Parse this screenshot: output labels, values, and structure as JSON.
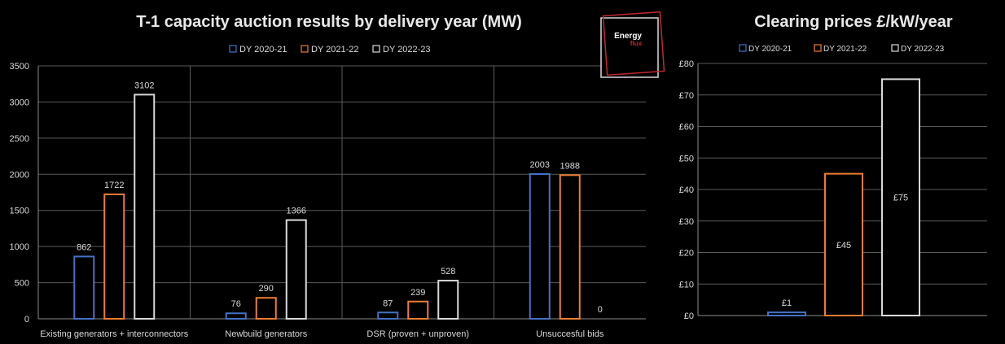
{
  "chart_data": [
    {
      "type": "bar",
      "title": "T-1 capacity auction results by delivery year (MW)",
      "xlabel": "",
      "ylabel": "",
      "ylim": [
        0,
        3500
      ],
      "yticks": [
        0,
        500,
        1000,
        1500,
        2000,
        2500,
        3000,
        3500
      ],
      "ytick_labels": [
        "0",
        "500",
        "1000",
        "1500",
        "2000",
        "2500",
        "3000",
        "3500"
      ],
      "grid": true,
      "legend": "top-center",
      "categories": [
        "Existing generators + interconnectors",
        "Newbuild generators",
        "DSR (proven + unproven)",
        "Unsuccesful bids"
      ],
      "series": [
        {
          "name": "DY 2020-21",
          "color": "#4472c4",
          "values": [
            862,
            76,
            87,
            2003
          ],
          "labels": [
            "862",
            "76",
            "87",
            "2003"
          ]
        },
        {
          "name": "DY 2021-22",
          "color": "#ed7d31",
          "values": [
            1722,
            290,
            239,
            1988
          ],
          "labels": [
            "1722",
            "290",
            "239",
            "1988"
          ]
        },
        {
          "name": "DY 2022-23",
          "color": "#d9d9d9",
          "values": [
            3102,
            1366,
            528,
            0
          ],
          "labels": [
            "3102",
            "1366",
            "528",
            "0"
          ]
        }
      ]
    },
    {
      "type": "bar",
      "title": "Clearing prices £/kW/year",
      "xlabel": "",
      "ylabel": "",
      "ylim": [
        0,
        80
      ],
      "yticks": [
        0,
        10,
        20,
        30,
        40,
        50,
        60,
        70,
        80
      ],
      "ytick_labels": [
        "£0",
        "£10",
        "£20",
        "£30",
        "£40",
        "£50",
        "£60",
        "£70",
        "£80"
      ],
      "grid": true,
      "legend": "top-center",
      "series": [
        {
          "name": "DY 2020-21",
          "color": "#4472c4",
          "value": 1,
          "label": "£1"
        },
        {
          "name": "DY 2021-22",
          "color": "#ed7d31",
          "value": 45,
          "label": "£45"
        },
        {
          "name": "DY 2022-23",
          "color": "#d9d9d9",
          "value": 75,
          "label": "£75"
        }
      ]
    }
  ],
  "logo": {
    "line1": "Energy",
    "line2": "flux",
    "color_main": "#ffffff",
    "color_accent": "#c0282d"
  }
}
